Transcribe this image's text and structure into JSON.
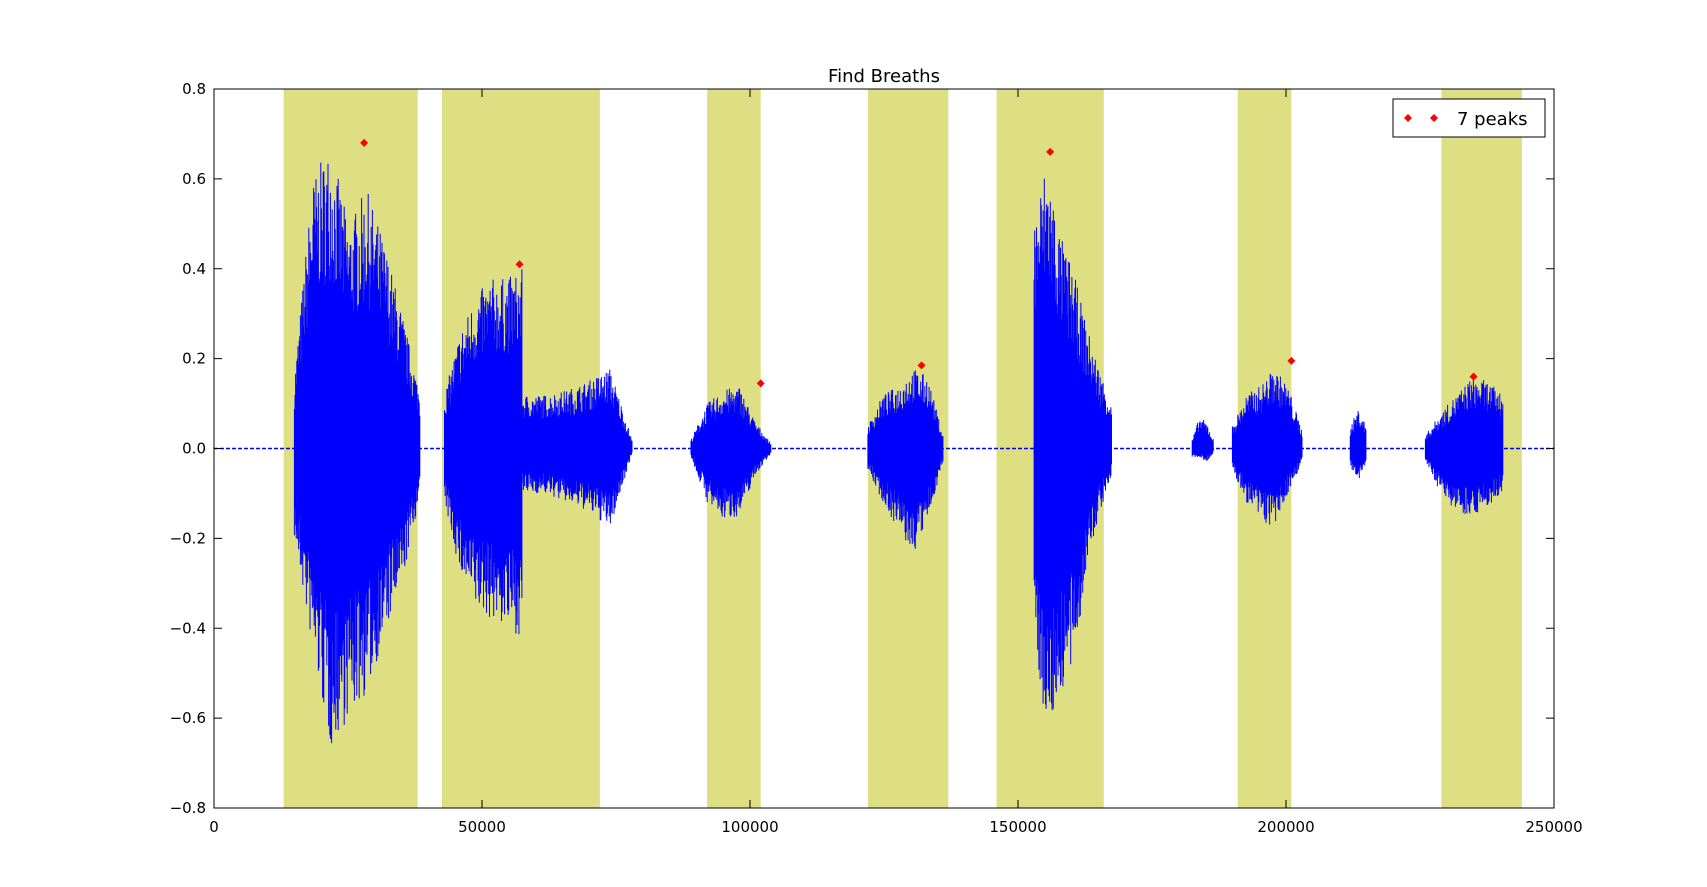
{
  "chart_data": {
    "type": "line",
    "title": "Find Breaths",
    "xlabel": "",
    "ylabel": "",
    "xlim": [
      0,
      250000
    ],
    "ylim": [
      -0.8,
      0.8
    ],
    "xticks": [
      0,
      50000,
      100000,
      150000,
      200000,
      250000
    ],
    "xtick_labels": [
      "0",
      "50000",
      "100000",
      "150000",
      "200000",
      "250000"
    ],
    "yticks": [
      0.8,
      0.6,
      0.4,
      0.2,
      0.0,
      -0.2,
      -0.4,
      -0.6,
      -0.8
    ],
    "ytick_labels": [
      "0.8",
      "0.6",
      "0.4",
      "0.2",
      "0.0",
      "−0.2",
      "−0.4",
      "−0.6",
      "−0.8"
    ],
    "grid": false,
    "legend_position": "top-right",
    "colors": {
      "signal": "#0000ff",
      "peaks": "#ff0000",
      "regions": "#dede82"
    },
    "highlighted_regions": [
      [
        13000,
        38000
      ],
      [
        42500,
        72000
      ],
      [
        92000,
        102000
      ],
      [
        122000,
        137000
      ],
      [
        146000,
        166000
      ],
      [
        191000,
        201000
      ],
      [
        229000,
        244000
      ]
    ],
    "envelope_segments": [
      {
        "start": 15000,
        "end": 38500,
        "top": [
          0.16,
          0.6,
          0.68,
          0.5,
          0.58,
          0.46,
          0.3,
          0.12
        ],
        "bottom": [
          -0.2,
          -0.45,
          -0.67,
          -0.6,
          -0.55,
          -0.42,
          -0.3,
          -0.1
        ]
      },
      {
        "start": 43000,
        "end": 57500,
        "top": [
          0.12,
          0.26,
          0.34,
          0.38,
          0.38,
          0.4
        ],
        "bottom": [
          -0.12,
          -0.28,
          -0.36,
          -0.38,
          -0.4,
          -0.42
        ]
      },
      {
        "start": 57500,
        "end": 78000,
        "top": [
          0.12,
          0.12,
          0.13,
          0.15,
          0.18,
          0.02
        ],
        "bottom": [
          -0.1,
          -0.1,
          -0.12,
          -0.14,
          -0.18,
          -0.01
        ]
      },
      {
        "start": 89000,
        "end": 104000,
        "top": [
          0.02,
          0.1,
          0.13,
          0.14,
          0.06,
          0.01
        ],
        "bottom": [
          -0.02,
          -0.12,
          -0.16,
          -0.15,
          -0.06,
          -0.01
        ]
      },
      {
        "start": 122000,
        "end": 136000,
        "top": [
          0.05,
          0.12,
          0.14,
          0.18,
          0.16,
          0.03
        ],
        "bottom": [
          -0.05,
          -0.12,
          -0.18,
          -0.24,
          -0.16,
          -0.03
        ]
      },
      {
        "start": 153000,
        "end": 167500,
        "top": [
          0.52,
          0.65,
          0.48,
          0.4,
          0.28,
          0.18,
          0.1
        ],
        "bottom": [
          -0.42,
          -0.64,
          -0.55,
          -0.5,
          -0.28,
          -0.15,
          -0.06
        ]
      },
      {
        "start": 182500,
        "end": 186500,
        "top": [
          0.02,
          0.07,
          0.06,
          0.02
        ],
        "bottom": [
          -0.02,
          -0.02,
          -0.03,
          -0.01
        ]
      },
      {
        "start": 190000,
        "end": 203000,
        "top": [
          0.05,
          0.12,
          0.14,
          0.18,
          0.14,
          0.04
        ],
        "bottom": [
          -0.05,
          -0.12,
          -0.16,
          -0.18,
          -0.1,
          -0.03
        ]
      },
      {
        "start": 212000,
        "end": 215000,
        "top": [
          0.05,
          0.09,
          0.05
        ],
        "bottom": [
          -0.04,
          -0.08,
          -0.03
        ]
      },
      {
        "start": 226000,
        "end": 240500,
        "top": [
          0.03,
          0.08,
          0.12,
          0.16,
          0.15,
          0.12
        ],
        "bottom": [
          -0.03,
          -0.1,
          -0.14,
          -0.15,
          -0.13,
          -0.1
        ]
      }
    ],
    "series": [
      {
        "name": "7 peaks",
        "x": [
          28000,
          57000,
          102000,
          132000,
          156000,
          201000,
          235000
        ],
        "y": [
          0.68,
          0.41,
          0.145,
          0.185,
          0.66,
          0.195,
          0.16
        ]
      }
    ]
  }
}
